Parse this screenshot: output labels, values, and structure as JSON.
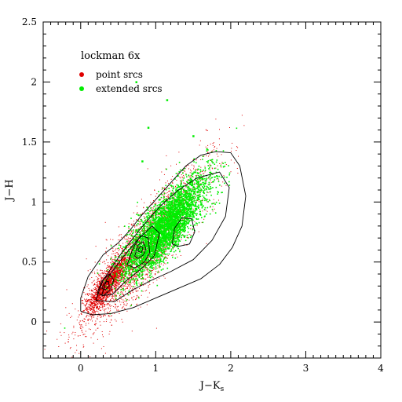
{
  "chart_data": {
    "type": "scatter",
    "title": "lockman 6x",
    "xlabel_main": "J−K",
    "xlabel_sub": "s",
    "ylabel": "J−H",
    "xlim": [
      -0.5,
      4
    ],
    "ylim": [
      -0.3,
      2.5
    ],
    "x_ticks": [
      0,
      1,
      2,
      3,
      4
    ],
    "x_tick_labels": [
      "0",
      "1",
      "2",
      "3",
      "4"
    ],
    "y_ticks": [
      0,
      0.5,
      1,
      1.5,
      2,
      2.5
    ],
    "y_tick_labels": [
      "0",
      "0.5",
      "1",
      "1.5",
      "2",
      "2.5"
    ],
    "x_minor_step": 0.1,
    "y_minor_step": 0.1,
    "grid": false,
    "legend_position": "top-left",
    "series": [
      {
        "name": "point srcs",
        "color": "#e00000",
        "marker": "dot",
        "distribution": {
          "main": {
            "center": [
              0.85,
              0.62
            ],
            "sigma_major": 0.5,
            "sigma_minor": 0.13,
            "slope": 0.78,
            "share": 0.7
          },
          "core": {
            "center": [
              0.35,
              0.32
            ],
            "sigma_major": 0.17,
            "sigma_minor": 0.045,
            "slope": 0.85,
            "share": 0.3
          }
        }
      },
      {
        "name": "extended srcs",
        "color": "#00ee00",
        "marker": "dot",
        "distribution": {
          "main": {
            "center": [
              1.12,
              0.8
            ],
            "sigma_major": 0.33,
            "sigma_minor": 0.1,
            "slope": 0.7,
            "share": 1.0
          }
        },
        "outliers": [
          {
            "x": 0.74,
            "y": 2.0
          },
          {
            "x": 1.15,
            "y": 1.85
          },
          {
            "x": 0.82,
            "y": 1.34
          },
          {
            "x": 0.9,
            "y": 1.62
          },
          {
            "x": 1.5,
            "y": 1.55
          }
        ]
      }
    ],
    "contours": [
      {
        "level": "outer",
        "points": [
          [
            0.0,
            0.09
          ],
          [
            0.0,
            0.2
          ],
          [
            0.1,
            0.38
          ],
          [
            0.3,
            0.56
          ],
          [
            0.5,
            0.66
          ],
          [
            0.65,
            0.76
          ],
          [
            0.8,
            0.88
          ],
          [
            1.0,
            1.02
          ],
          [
            1.2,
            1.16
          ],
          [
            1.4,
            1.3
          ],
          [
            1.6,
            1.39
          ],
          [
            1.8,
            1.42
          ],
          [
            2.0,
            1.41
          ],
          [
            2.12,
            1.3
          ],
          [
            2.2,
            1.05
          ],
          [
            2.15,
            0.8
          ],
          [
            2.02,
            0.62
          ],
          [
            1.85,
            0.48
          ],
          [
            1.6,
            0.36
          ],
          [
            1.3,
            0.28
          ],
          [
            1.0,
            0.2
          ],
          [
            0.7,
            0.12
          ],
          [
            0.4,
            0.07
          ],
          [
            0.15,
            0.06
          ],
          [
            0.0,
            0.09
          ]
        ]
      },
      {
        "level": "mid",
        "points": [
          [
            0.2,
            0.18
          ],
          [
            0.3,
            0.35
          ],
          [
            0.55,
            0.58
          ],
          [
            0.8,
            0.78
          ],
          [
            1.05,
            0.96
          ],
          [
            1.3,
            1.1
          ],
          [
            1.55,
            1.2
          ],
          [
            1.85,
            1.25
          ],
          [
            1.98,
            1.12
          ],
          [
            1.93,
            0.88
          ],
          [
            1.75,
            0.68
          ],
          [
            1.5,
            0.52
          ],
          [
            1.2,
            0.42
          ],
          [
            0.95,
            0.35
          ],
          [
            0.7,
            0.27
          ],
          [
            0.45,
            0.17
          ],
          [
            0.2,
            0.18
          ]
        ]
      },
      {
        "level": "inner-a",
        "points": [
          [
            0.28,
            0.22
          ],
          [
            0.35,
            0.36
          ],
          [
            0.55,
            0.53
          ],
          [
            0.75,
            0.68
          ],
          [
            0.95,
            0.8
          ],
          [
            1.05,
            0.74
          ],
          [
            0.98,
            0.55
          ],
          [
            0.8,
            0.44
          ],
          [
            0.6,
            0.34
          ],
          [
            0.42,
            0.23
          ],
          [
            0.28,
            0.22
          ]
        ]
      },
      {
        "level": "inner-b",
        "points": [
          [
            0.62,
            0.48
          ],
          [
            0.7,
            0.62
          ],
          [
            0.8,
            0.72
          ],
          [
            0.9,
            0.7
          ],
          [
            0.92,
            0.58
          ],
          [
            0.85,
            0.5
          ],
          [
            0.72,
            0.45
          ],
          [
            0.62,
            0.48
          ]
        ]
      },
      {
        "level": "inner-c",
        "points": [
          [
            0.72,
            0.55
          ],
          [
            0.76,
            0.64
          ],
          [
            0.83,
            0.67
          ],
          [
            0.87,
            0.61
          ],
          [
            0.84,
            0.56
          ],
          [
            0.76,
            0.53
          ],
          [
            0.72,
            0.55
          ]
        ]
      },
      {
        "level": "inner-d",
        "points": [
          [
            0.76,
            0.59
          ],
          [
            0.79,
            0.63
          ],
          [
            0.83,
            0.62
          ],
          [
            0.81,
            0.58
          ],
          [
            0.76,
            0.59
          ]
        ]
      },
      {
        "level": "second-peak",
        "points": [
          [
            1.22,
            0.65
          ],
          [
            1.25,
            0.78
          ],
          [
            1.35,
            0.87
          ],
          [
            1.48,
            0.86
          ],
          [
            1.52,
            0.75
          ],
          [
            1.45,
            0.65
          ],
          [
            1.3,
            0.63
          ],
          [
            1.22,
            0.65
          ]
        ]
      },
      {
        "level": "core-a",
        "points": [
          [
            0.22,
            0.24
          ],
          [
            0.28,
            0.34
          ],
          [
            0.38,
            0.4
          ],
          [
            0.44,
            0.35
          ],
          [
            0.4,
            0.27
          ],
          [
            0.3,
            0.22
          ],
          [
            0.22,
            0.24
          ]
        ]
      },
      {
        "level": "core-b",
        "points": [
          [
            0.28,
            0.28
          ],
          [
            0.32,
            0.33
          ],
          [
            0.37,
            0.34
          ],
          [
            0.38,
            0.3
          ],
          [
            0.33,
            0.27
          ],
          [
            0.28,
            0.28
          ]
        ]
      }
    ]
  }
}
